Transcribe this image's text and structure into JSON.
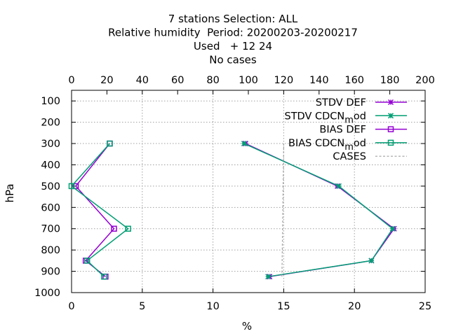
{
  "chart_data": {
    "type": "line",
    "title_lines": [
      "7 stations Selection: ALL",
      "Relative humidity  Period: 20200203-20200217",
      "Used   + 12 24",
      "No cases"
    ],
    "xlabel": "%",
    "ylabel": "hPa",
    "x_bottom": {
      "lim": [
        0,
        25
      ],
      "ticks": [
        "0",
        "5",
        "10",
        "15",
        "20",
        "25"
      ]
    },
    "x_top": {
      "lim": [
        0,
        200
      ],
      "ticks": [
        "0",
        "20",
        "40",
        "60",
        "80",
        "100",
        "120",
        "140",
        "160",
        "180",
        "200"
      ]
    },
    "y": {
      "lim": [
        1000,
        50
      ],
      "reversed": true,
      "ticks": [
        "100",
        "200",
        "300",
        "400",
        "500",
        "600",
        "700",
        "800",
        "900",
        "1000"
      ]
    },
    "grid": true,
    "legend_placement": "top-right",
    "series": [
      {
        "name": "STDV DEF",
        "color": "#9400d3",
        "marker": "x-star",
        "points": [
          {
            "x": 12.3,
            "y": 300
          },
          {
            "x": 18.8,
            "y": 500
          },
          {
            "x": 22.8,
            "y": 700
          },
          {
            "x": 21.2,
            "y": 850
          },
          {
            "x": 14.0,
            "y": 925
          }
        ]
      },
      {
        "name": "STDV CDCN_mod",
        "color": "#009e73",
        "marker": "x-star",
        "points": [
          {
            "x": 12.2,
            "y": 300
          },
          {
            "x": 18.9,
            "y": 500
          },
          {
            "x": 22.7,
            "y": 700
          },
          {
            "x": 21.2,
            "y": 850
          },
          {
            "x": 13.9,
            "y": 925
          }
        ]
      },
      {
        "name": "BIAS DEF",
        "color": "#9400d3",
        "marker": "square",
        "points": [
          {
            "x": 2.7,
            "y": 300
          },
          {
            "x": 0.3,
            "y": 500
          },
          {
            "x": 3.0,
            "y": 700
          },
          {
            "x": 1.0,
            "y": 850
          },
          {
            "x": 2.4,
            "y": 925
          }
        ]
      },
      {
        "name": "BIAS CDCN_mod",
        "color": "#009e73",
        "marker": "square",
        "points": [
          {
            "x": 2.7,
            "y": 300
          },
          {
            "x": 0.0,
            "y": 500
          },
          {
            "x": 4.0,
            "y": 700
          },
          {
            "x": 1.1,
            "y": 850
          },
          {
            "x": 2.3,
            "y": 925
          }
        ]
      },
      {
        "name": "CASES",
        "color": "#a0a0a0",
        "marker": "none",
        "dashed": true,
        "axis": "top",
        "points": [
          {
            "x": 120,
            "y": 300
          },
          {
            "x": 119,
            "y": 925
          }
        ]
      }
    ],
    "legend": [
      {
        "text": "STDV DEF",
        "series": 0
      },
      {
        "text": "STDV CDCN",
        "sub": "m",
        "suffix": "od",
        "series": 1
      },
      {
        "text": "BIAS DEF",
        "series": 2
      },
      {
        "text": "BIAS CDCN",
        "sub": "m",
        "suffix": "od",
        "series": 3
      },
      {
        "text": "CASES",
        "series": 4
      }
    ]
  }
}
